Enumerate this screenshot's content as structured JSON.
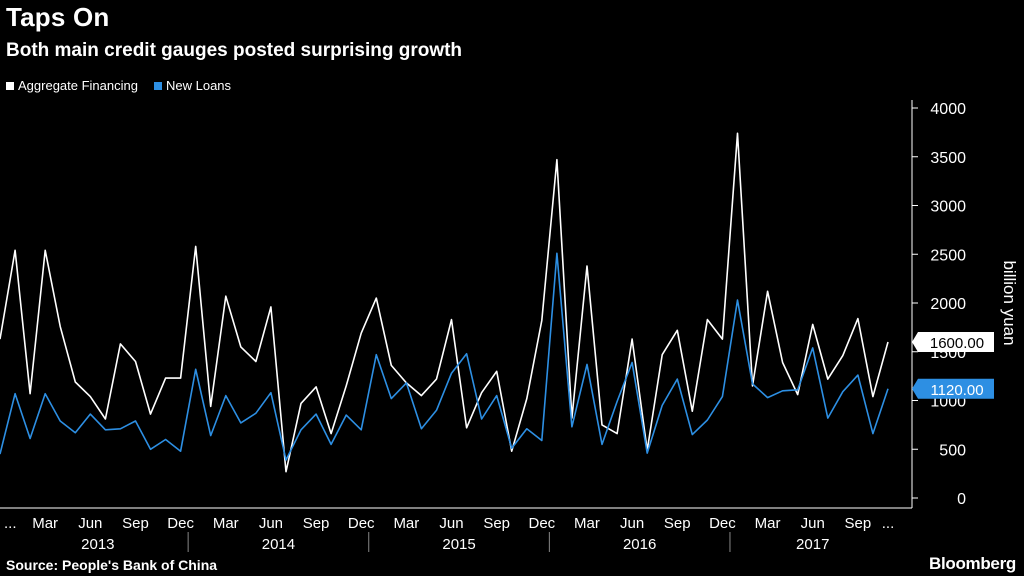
{
  "header": {
    "title": "Taps On",
    "subtitle": "Both main credit gauges posted surprising growth"
  },
  "footer": {
    "source": "Source: People's Bank of China",
    "brand": "Bloomberg"
  },
  "chart_data": {
    "type": "line",
    "ylabel": "billion yuan",
    "ylim": [
      0,
      4000
    ],
    "yticks": [
      0,
      500,
      1000,
      1500,
      2000,
      2500,
      3000,
      3500,
      4000
    ],
    "x": [
      "2012-12",
      "2013-01",
      "2013-02",
      "2013-03",
      "2013-04",
      "2013-05",
      "2013-06",
      "2013-07",
      "2013-08",
      "2013-09",
      "2013-10",
      "2013-11",
      "2013-12",
      "2014-01",
      "2014-02",
      "2014-03",
      "2014-04",
      "2014-05",
      "2014-06",
      "2014-07",
      "2014-08",
      "2014-09",
      "2014-10",
      "2014-11",
      "2014-12",
      "2015-01",
      "2015-02",
      "2015-03",
      "2015-04",
      "2015-05",
      "2015-06",
      "2015-07",
      "2015-08",
      "2015-09",
      "2015-10",
      "2015-11",
      "2015-12",
      "2016-01",
      "2016-02",
      "2016-03",
      "2016-04",
      "2016-05",
      "2016-06",
      "2016-07",
      "2016-08",
      "2016-09",
      "2016-10",
      "2016-11",
      "2016-12",
      "2017-01",
      "2017-02",
      "2017-03",
      "2017-04",
      "2017-05",
      "2017-06",
      "2017-07",
      "2017-08",
      "2017-09",
      "2017-10",
      "2017-11"
    ],
    "x_tick_labels": [
      "...",
      "Mar",
      "Jun",
      "Sep",
      "Dec",
      "Mar",
      "Jun",
      "Sep",
      "Dec",
      "Mar",
      "Jun",
      "Sep",
      "Dec",
      "Mar",
      "Jun",
      "Sep",
      "Dec",
      "Mar",
      "Jun",
      "Sep",
      "..."
    ],
    "x_tick_months": [
      "2012-12",
      "2013-03",
      "2013-06",
      "2013-09",
      "2013-12",
      "2014-03",
      "2014-06",
      "2014-09",
      "2014-12",
      "2015-03",
      "2015-06",
      "2015-09",
      "2015-12",
      "2016-03",
      "2016-06",
      "2016-09",
      "2016-12",
      "2017-03",
      "2017-06",
      "2017-09",
      "2017-11"
    ],
    "year_labels": [
      "2013",
      "2014",
      "2015",
      "2016",
      "2017"
    ],
    "grid": false,
    "legend_position": "top-left",
    "series": [
      {
        "name": "Aggregate Financing",
        "color": "#ffffff",
        "last_label": "1600.00",
        "values": [
          1630,
          2540,
          1070,
          2540,
          1760,
          1190,
          1040,
          810,
          1580,
          1400,
          860,
          1230,
          1230,
          2580,
          940,
          2070,
          1550,
          1400,
          1960,
          270,
          970,
          1140,
          660,
          1150,
          1690,
          2050,
          1360,
          1180,
          1050,
          1220,
          1830,
          720,
          1080,
          1300,
          480,
          1020,
          1820,
          3470,
          820,
          2380,
          750,
          660,
          1630,
          490,
          1470,
          1720,
          890,
          1830,
          1630,
          3740,
          1150,
          2120,
          1390,
          1060,
          1780,
          1220,
          1460,
          1840,
          1040,
          1600
        ]
      },
      {
        "name": "New Loans",
        "color": "#2d8fe3",
        "last_label": "1120.00",
        "values": [
          450,
          1070,
          610,
          1070,
          790,
          670,
          860,
          700,
          710,
          790,
          500,
          600,
          480,
          1320,
          640,
          1050,
          770,
          870,
          1080,
          390,
          700,
          860,
          550,
          850,
          700,
          1470,
          1020,
          1180,
          710,
          900,
          1280,
          1480,
          810,
          1050,
          510,
          710,
          590,
          2510,
          730,
          1370,
          550,
          990,
          1390,
          460,
          950,
          1220,
          650,
          800,
          1040,
          2030,
          1170,
          1030,
          1100,
          1110,
          1540,
          820,
          1090,
          1260,
          660,
          1120
        ]
      }
    ]
  }
}
